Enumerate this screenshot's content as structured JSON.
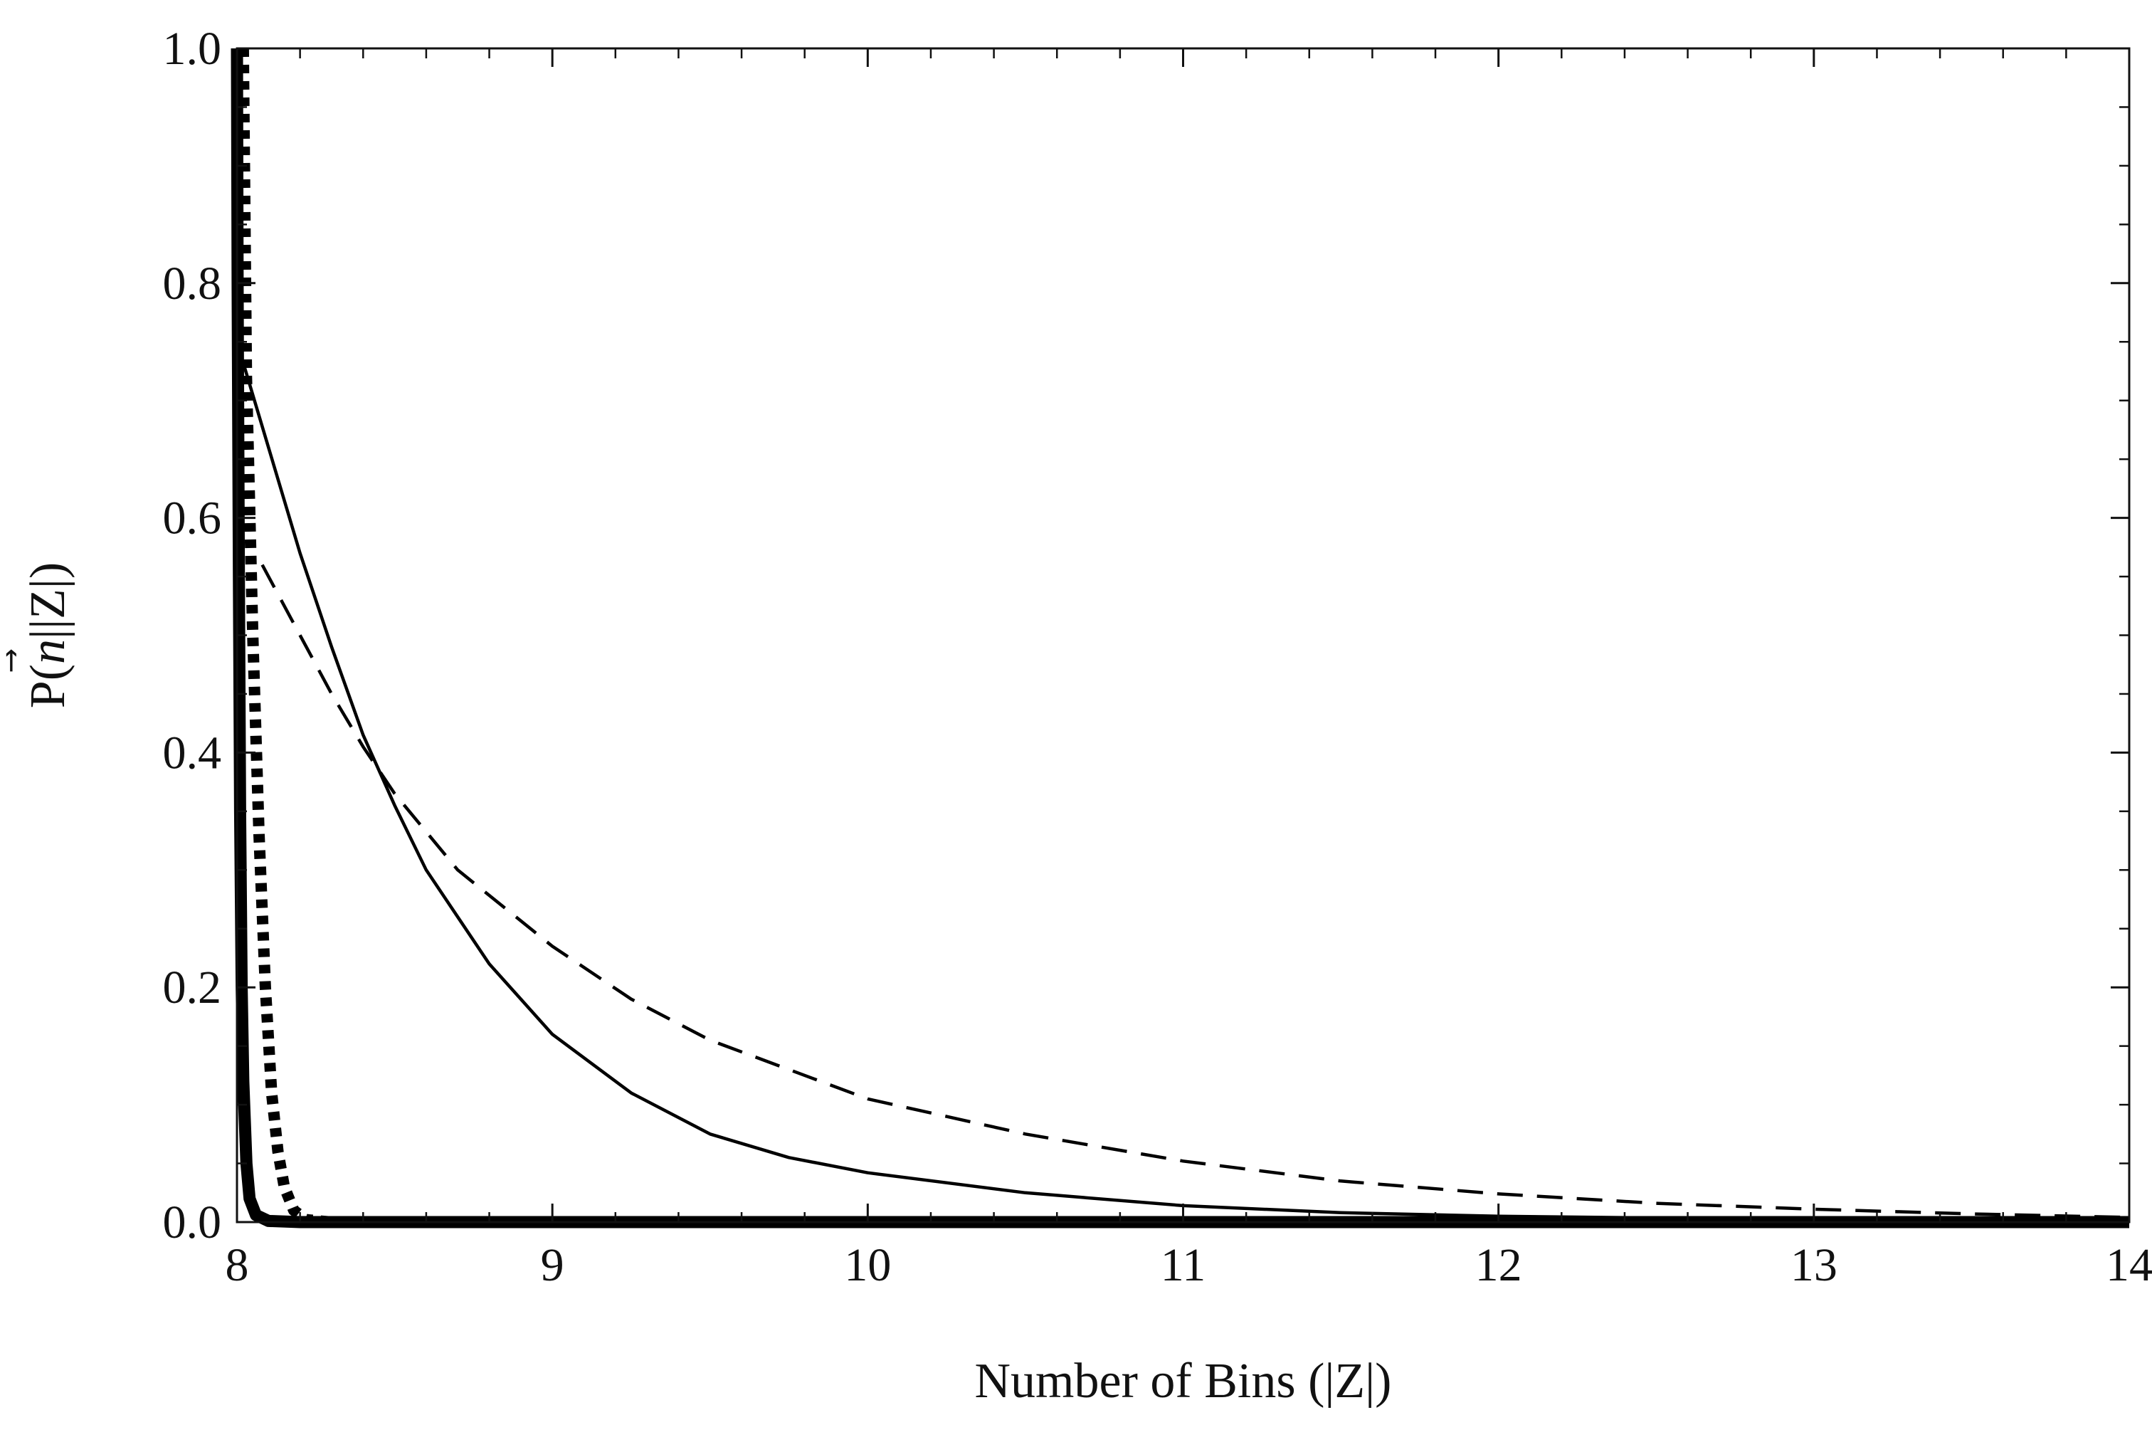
{
  "chart_data": {
    "type": "line",
    "xlabel": "Number of Bins (|Z|)",
    "ylabel": {
      "prefix": "P(",
      "vec": "n",
      "suffix": "||Z|)"
    },
    "xlim": [
      8,
      14
    ],
    "ylim": [
      0,
      1
    ],
    "x_ticks": [
      "8",
      "9",
      "10",
      "11",
      "12",
      "13",
      "14"
    ],
    "y_ticks": [
      "0.0",
      "0.2",
      "0.4",
      "0.6",
      "0.8",
      "1.0"
    ],
    "grid": false,
    "series": [
      {
        "style": "thin-solid",
        "x": [
          8,
          8.1,
          8.2,
          8.3,
          8.4,
          8.5,
          8.6,
          8.8,
          9.0,
          9.25,
          9.5,
          9.75,
          10.0,
          10.5,
          11.0,
          11.5,
          12.0,
          13.0,
          14.0
        ],
        "y": [
          0.75,
          0.66,
          0.57,
          0.49,
          0.415,
          0.355,
          0.3,
          0.22,
          0.16,
          0.11,
          0.075,
          0.055,
          0.042,
          0.025,
          0.014,
          0.008,
          0.005,
          0.002,
          0.001
        ]
      },
      {
        "style": "thin-dashed",
        "x": [
          8.08,
          8.2,
          8.3,
          8.4,
          8.5,
          8.7,
          9.0,
          9.25,
          9.5,
          10.0,
          10.5,
          11.0,
          11.5,
          12.0,
          12.5,
          13.0,
          13.5,
          14.0
        ],
        "y": [
          0.56,
          0.5,
          0.45,
          0.405,
          0.365,
          0.3,
          0.235,
          0.19,
          0.155,
          0.105,
          0.075,
          0.052,
          0.035,
          0.024,
          0.016,
          0.011,
          0.007,
          0.004
        ]
      },
      {
        "style": "thick-dotted",
        "x": [
          8.02,
          8.03,
          8.05,
          8.07,
          8.09,
          8.11,
          8.13,
          8.15,
          8.18,
          8.22,
          8.3,
          14.0
        ],
        "y": [
          1.0,
          0.72,
          0.5,
          0.33,
          0.2,
          0.11,
          0.06,
          0.03,
          0.01,
          0.002,
          0.0,
          0.0
        ]
      },
      {
        "style": "thick-solid",
        "x": [
          8.0,
          8.002,
          8.006,
          8.01,
          8.015,
          8.02,
          8.03,
          8.04,
          8.06,
          8.1,
          8.2,
          14.0
        ],
        "y": [
          1.0,
          0.8,
          0.55,
          0.35,
          0.2,
          0.12,
          0.05,
          0.02,
          0.006,
          0.001,
          0.0,
          0.0
        ]
      }
    ]
  }
}
